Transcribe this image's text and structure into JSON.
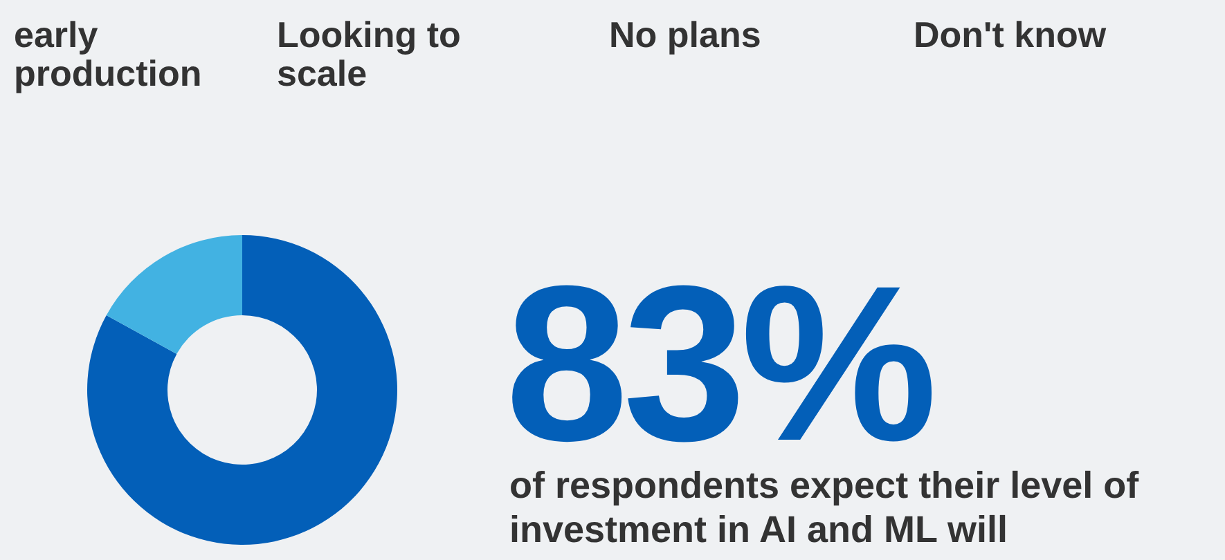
{
  "chart_data": {
    "type": "donut",
    "categories": [
      null,
      null
    ],
    "values": [
      83,
      17
    ],
    "colors": [
      "#035fb8",
      "#42b2e2"
    ],
    "value_labels": [
      "83%",
      null
    ],
    "annotations": [
      "early production",
      "Looking to scale",
      "No plans",
      "Don't know",
      "of respondents expect their level of investment in AI and ML will"
    ]
  }
}
